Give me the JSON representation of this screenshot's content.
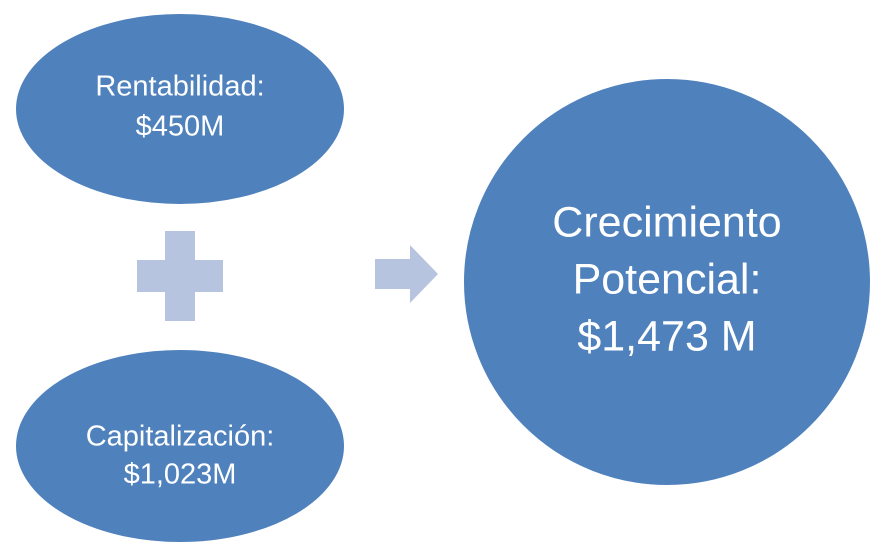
{
  "nodes": [
    {
      "lines": [
        "Rentabilidad:",
        "$450M"
      ]
    },
    {
      "lines": [
        "Capitalización:",
        "$1,023M"
      ]
    },
    {
      "lines": [
        "Crecimiento",
        "Potencial:",
        "$1,473 M"
      ]
    }
  ]
}
